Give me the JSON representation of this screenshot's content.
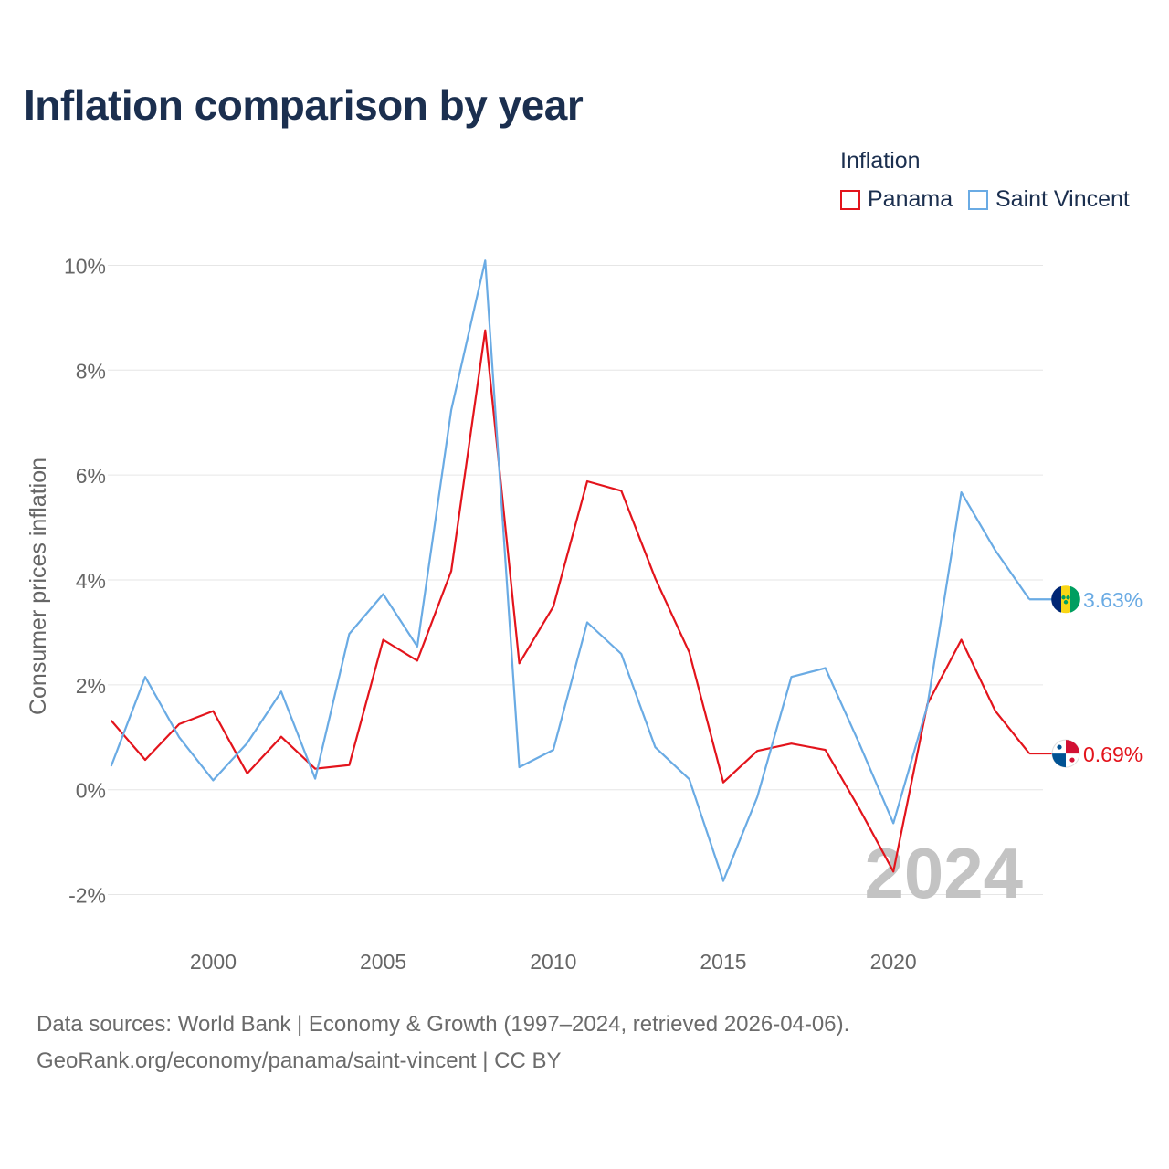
{
  "title": "Inflation comparison by year",
  "legend": {
    "title": "Inflation",
    "items": [
      {
        "name": "Panama",
        "color": "#e3141c"
      },
      {
        "name": "Saint Vincent",
        "color": "#6aabe4"
      }
    ]
  },
  "chart_data": {
    "type": "line",
    "title": "Inflation comparison by year",
    "xlabel": "",
    "ylabel": "Consumer prices inflation",
    "x": [
      1997,
      1998,
      1999,
      2000,
      2001,
      2002,
      2003,
      2004,
      2005,
      2006,
      2007,
      2008,
      2009,
      2010,
      2011,
      2012,
      2013,
      2014,
      2015,
      2016,
      2017,
      2018,
      2019,
      2020,
      2021,
      2022,
      2023,
      2024
    ],
    "xlim": [
      1996.9,
      2024.4
    ],
    "ylim": [
      -2.6,
      10.6
    ],
    "xticks": [
      2000,
      2005,
      2010,
      2015,
      2020
    ],
    "xtick_labels": [
      "2000",
      "2005",
      "2010",
      "2015",
      "2020"
    ],
    "yticks": [
      -2,
      0,
      2,
      4,
      6,
      8,
      10
    ],
    "ytick_labels": [
      "-2%",
      "0%",
      "2%",
      "4%",
      "6%",
      "8%",
      "10%"
    ],
    "grid": true,
    "series": [
      {
        "name": "Panama",
        "color": "#e3141c",
        "values": [
          1.32,
          0.57,
          1.25,
          1.5,
          0.31,
          1.01,
          0.4,
          0.47,
          2.86,
          2.46,
          4.17,
          8.76,
          2.41,
          3.49,
          5.88,
          5.7,
          4.03,
          2.62,
          0.14,
          0.74,
          0.88,
          0.76,
          -0.36,
          -1.56,
          1.63,
          2.86,
          1.5,
          0.69
        ],
        "end_label": "0.69%"
      },
      {
        "name": "Saint Vincent",
        "color": "#6aabe4",
        "values": [
          0.45,
          2.15,
          1.0,
          0.18,
          0.89,
          1.87,
          0.21,
          2.97,
          3.73,
          2.73,
          7.24,
          10.09,
          0.43,
          0.76,
          3.19,
          2.59,
          0.81,
          0.2,
          -1.74,
          -0.14,
          2.15,
          2.32,
          0.88,
          -0.64,
          1.6,
          5.67,
          4.56,
          3.63
        ],
        "end_label": "3.63%"
      }
    ],
    "annotations": [
      "2024"
    ]
  },
  "watermark_year": "2024",
  "source": {
    "line1": "Data sources: World Bank | Economy & Growth (1997–2024, retrieved 2026-04-06).",
    "line2": "GeoRank.org/economy/panama/saint-vincent | CC BY"
  }
}
